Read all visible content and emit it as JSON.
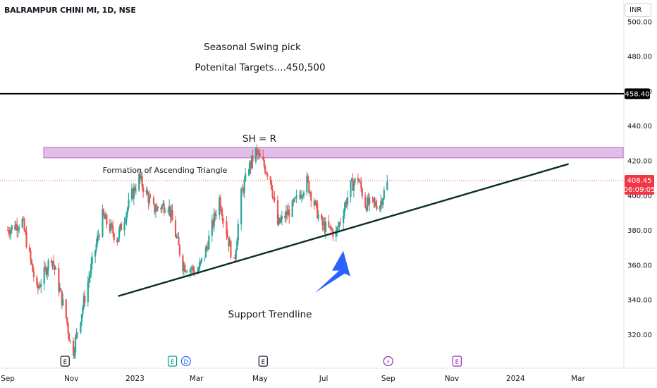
{
  "header": {
    "symbol": "BALRAMPUR CHINI MI, 1D, NSE",
    "currency_button": "INR"
  },
  "colors": {
    "up": "#26a69a",
    "down": "#ef5350",
    "zone_fill": "#e1bee7",
    "zone_border": "#ba68c8",
    "hline": "#000000",
    "trendline": "#0b2e22",
    "arrow": "#2962ff",
    "price_tag": "#f23645"
  },
  "annotations": {
    "title_line1": "Seasonal Swing pick",
    "title_line2": "Potenital Targets....450,500",
    "sh_label": "SH = R",
    "triangle_label": "Formation of Ascending Triangle",
    "trendline_label": "Support Trendline"
  },
  "chart_data": {
    "type": "candlestick",
    "x_axis": {
      "labels": [
        "Sep",
        "Nov",
        "2023",
        "Mar",
        "May",
        "Jul",
        "Sep",
        "Nov",
        "2024",
        "Mar"
      ]
    },
    "y_axis": {
      "ticks": [
        320,
        340,
        360,
        380,
        400,
        420,
        440,
        460,
        480,
        500
      ],
      "tick_labels": [
        "320.00",
        "340.00",
        "360.00",
        "380.00",
        "400.00",
        "420.00",
        "440.00",
        "460.00",
        "480.00",
        "500.00"
      ],
      "range": [
        300,
        504
      ]
    },
    "price_labels": {
      "horizontal_line": "458.40",
      "last_price": "408.45",
      "countdown": "06:09:05"
    },
    "horizontal_line_value": 458.4,
    "last_price_value": 408.45,
    "resistance_zone": {
      "low": 421.5,
      "high": 427.5
    },
    "support_trendline": {
      "start": {
        "date": "2022-12-20",
        "value": 342
      },
      "end": {
        "date": "2024-02-25",
        "value": 418
      }
    },
    "arrow": {
      "from": {
        "date": "2023-08-01",
        "value": 344
      },
      "to": {
        "date": "2023-08-01",
        "value": 368
      }
    },
    "event_markers": [
      {
        "label": "E",
        "date": "2022-10-30",
        "color": "#131722"
      },
      {
        "label": "E",
        "date": "2023-02-10",
        "color": "#089981"
      },
      {
        "label": "D",
        "date": "2023-02-23",
        "color": "#2962ff"
      },
      {
        "label": "E",
        "date": "2023-05-08",
        "color": "#131722"
      },
      {
        "label": "⚡",
        "date": "2023-09-05",
        "color": "#9c27b0"
      },
      {
        "label": "E",
        "date": "2023-11-10",
        "color": "#9c27b0"
      }
    ],
    "series": [
      {
        "date": "2022-09-05",
        "close": 380
      },
      {
        "date": "2022-09-19",
        "close": 385
      },
      {
        "date": "2022-10-03",
        "close": 345
      },
      {
        "date": "2022-10-17",
        "close": 365
      },
      {
        "date": "2022-10-31",
        "close": 330
      },
      {
        "date": "2022-11-06",
        "close": 308
      },
      {
        "date": "2022-11-21",
        "close": 350
      },
      {
        "date": "2022-12-05",
        "close": 388
      },
      {
        "date": "2022-12-19",
        "close": 375
      },
      {
        "date": "2023-01-02",
        "close": 400
      },
      {
        "date": "2023-01-09",
        "close": 410
      },
      {
        "date": "2023-01-23",
        "close": 392
      },
      {
        "date": "2023-02-06",
        "close": 395
      },
      {
        "date": "2023-02-20",
        "close": 360
      },
      {
        "date": "2023-03-06",
        "close": 356
      },
      {
        "date": "2023-03-13",
        "close": 366
      },
      {
        "date": "2023-03-27",
        "close": 398
      },
      {
        "date": "2023-04-10",
        "close": 360
      },
      {
        "date": "2023-04-17",
        "close": 400
      },
      {
        "date": "2023-04-24",
        "close": 415
      },
      {
        "date": "2023-05-01",
        "close": 425
      },
      {
        "date": "2023-05-08",
        "close": 418
      },
      {
        "date": "2023-05-15",
        "close": 410
      },
      {
        "date": "2023-05-22",
        "close": 383
      },
      {
        "date": "2023-06-05",
        "close": 393
      },
      {
        "date": "2023-06-19",
        "close": 408
      },
      {
        "date": "2023-07-03",
        "close": 383
      },
      {
        "date": "2023-07-17",
        "close": 378
      },
      {
        "date": "2023-07-31",
        "close": 405
      },
      {
        "date": "2023-08-07",
        "close": 410
      },
      {
        "date": "2023-08-14",
        "close": 395
      },
      {
        "date": "2023-08-28",
        "close": 395
      },
      {
        "date": "2023-09-05",
        "close": 408.45
      }
    ]
  }
}
